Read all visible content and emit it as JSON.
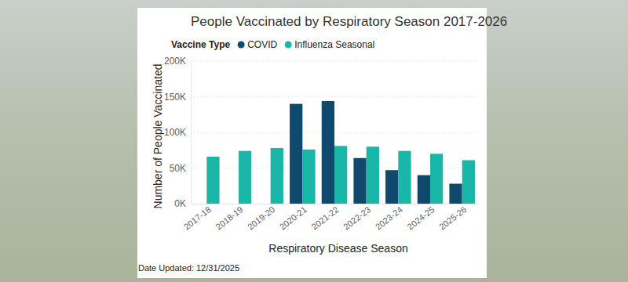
{
  "chart_data": {
    "type": "bar",
    "title": "People Vaccinated by Respiratory Season 2017-2026",
    "legend_title": "Vaccine Type",
    "legend": "top-left",
    "x_label": "Respiratory Disease Season",
    "y_label": "Number of People Vaccinated",
    "annotation": "Date Updated: 12/31/2025",
    "categories": [
      "2017-18",
      "2018-19",
      "2019-20",
      "2020-21",
      "2021-22",
      "2022-23",
      "2023-24",
      "2024-25",
      "2025-26"
    ],
    "series": [
      {
        "name": "COVID",
        "color": "#0f4a6e",
        "values": [
          null,
          null,
          null,
          140000,
          144000,
          64000,
          47000,
          40000,
          28000
        ]
      },
      {
        "name": "Influenza Seasonal",
        "color": "#1ab7a8",
        "values": [
          66000,
          74000,
          78000,
          76000,
          81000,
          80000,
          74000,
          70000,
          61000
        ]
      }
    ],
    "ylim": [
      0,
      200000
    ],
    "yticks": [
      {
        "value": 0,
        "label": "0K"
      },
      {
        "value": 50000,
        "label": "50K"
      },
      {
        "value": 100000,
        "label": "100K"
      },
      {
        "value": 150000,
        "label": "150K"
      },
      {
        "value": 200000,
        "label": "200K"
      }
    ],
    "grid": true
  }
}
